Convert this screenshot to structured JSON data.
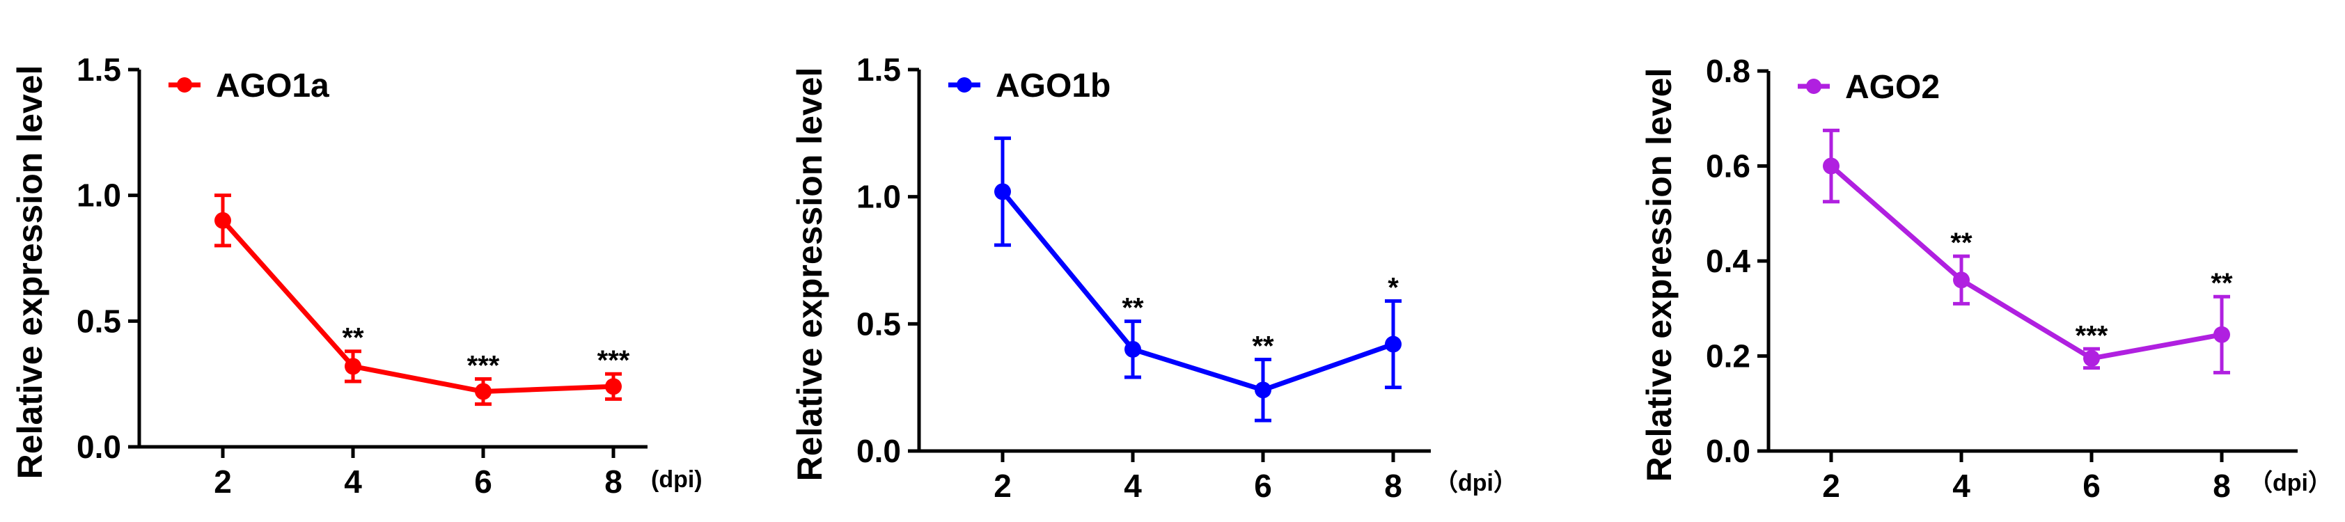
{
  "chart_data": [
    {
      "type": "line",
      "ylabel": "Relative expression level",
      "x_unit_label": "(dpi)",
      "x": [
        2,
        4,
        6,
        8
      ],
      "xticks": [
        "2",
        "4",
        "6",
        "8"
      ],
      "ylim": [
        0,
        1.5
      ],
      "yticks": [
        "0.0",
        "0.5",
        "1.0",
        "1.5"
      ],
      "grid": false,
      "legend_position": "top-left",
      "series": [
        {
          "name": "AGO1a",
          "color": "#ff0000",
          "values": [
            0.9,
            0.32,
            0.22,
            0.24
          ],
          "error": [
            0.1,
            0.06,
            0.05,
            0.05
          ],
          "significance": [
            "",
            "**",
            "***",
            "***"
          ]
        }
      ]
    },
    {
      "type": "line",
      "ylabel": "Relative expression level",
      "x_unit_label": "（dpi）",
      "x": [
        2,
        4,
        6,
        8
      ],
      "xticks": [
        "2",
        "4",
        "6",
        "8"
      ],
      "ylim": [
        0,
        1.5
      ],
      "yticks": [
        "0.0",
        "0.5",
        "1.0",
        "1.5"
      ],
      "grid": false,
      "legend_position": "top-left",
      "series": [
        {
          "name": "AGO1b",
          "color": "#0000ff",
          "values": [
            1.02,
            0.4,
            0.24,
            0.42
          ],
          "error": [
            0.21,
            0.11,
            0.12,
            0.17
          ],
          "significance": [
            "",
            "**",
            "**",
            "*"
          ]
        }
      ]
    },
    {
      "type": "line",
      "ylabel": "Relative expression level",
      "x_unit_label": "（dpi）",
      "x": [
        2,
        4,
        6,
        8
      ],
      "xticks": [
        "2",
        "4",
        "6",
        "8"
      ],
      "ylim": [
        0,
        0.8
      ],
      "yticks": [
        "0.0",
        "0.2",
        "0.4",
        "0.6",
        "0.8"
      ],
      "grid": false,
      "legend_position": "top-left",
      "series": [
        {
          "name": "AGO2",
          "color": "#b020e0",
          "values": [
            0.6,
            0.36,
            0.195,
            0.245
          ],
          "error": [
            0.075,
            0.05,
            0.02,
            0.08
          ],
          "significance": [
            "",
            "**",
            "***",
            "**"
          ]
        }
      ]
    }
  ]
}
